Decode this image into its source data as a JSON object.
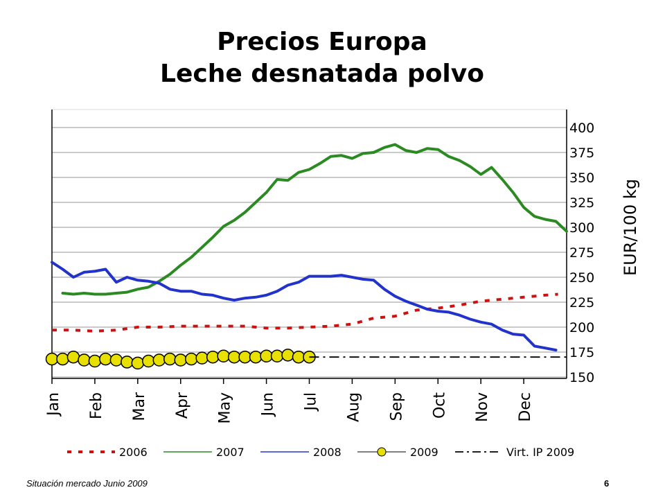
{
  "slide": {
    "title_line1": "Precios Europa",
    "title_line2": "Leche desnatada polvo",
    "footer_left": "Situación mercado Junio 2009",
    "page_number": "6"
  },
  "chart_data": {
    "type": "line",
    "ylabel": "EUR/100 kg",
    "ylim": [
      150,
      400
    ],
    "yticks": [
      150,
      175,
      200,
      225,
      250,
      275,
      300,
      325,
      350,
      375,
      400
    ],
    "xlim": [
      0,
      12
    ],
    "months": [
      "Jan",
      "Feb",
      "Mar",
      "Apr",
      "May",
      "Jun",
      "Jul",
      "Aug",
      "Sep",
      "Oct",
      "Nov",
      "Dec"
    ],
    "grid": true,
    "legend_position": "bottom",
    "series": [
      {
        "name": "2006",
        "color": "#cc1111",
        "style": "dotted",
        "x": [
          0,
          0.5,
          1,
          1.5,
          2,
          2.5,
          3,
          3.5,
          4,
          4.5,
          5,
          5.5,
          6,
          6.5,
          7,
          7.5,
          8,
          8.5,
          9,
          9.5,
          10,
          10.5,
          11,
          11.5,
          11.8
        ],
        "y": [
          197,
          197,
          196,
          197,
          200,
          200,
          201,
          201,
          201,
          201,
          199,
          199,
          200,
          201,
          203,
          209,
          211,
          217,
          219,
          222,
          226,
          228,
          230,
          232,
          233
        ]
      },
      {
        "name": "2007",
        "color": "#2b8a22",
        "style": "solid",
        "x": [
          0.25,
          0.5,
          0.75,
          1,
          1.25,
          1.5,
          1.75,
          2,
          2.25,
          2.5,
          2.75,
          3,
          3.25,
          3.5,
          3.75,
          4,
          4.25,
          4.5,
          4.75,
          5,
          5.25,
          5.5,
          5.75,
          6,
          6.25,
          6.5,
          6.75,
          7,
          7.25,
          7.5,
          7.75,
          8,
          8.25,
          8.5,
          8.75,
          9,
          9.25,
          9.5,
          9.75,
          10,
          10.25,
          10.5,
          10.75,
          11,
          11.25,
          11.5,
          11.75,
          12
        ],
        "y": [
          234,
          233,
          234,
          233,
          233,
          234,
          235,
          238,
          240,
          246,
          253,
          262,
          270,
          280,
          290,
          301,
          307,
          315,
          325,
          335,
          348,
          347,
          355,
          358,
          364,
          371,
          372,
          369,
          374,
          375,
          380,
          383,
          377,
          375,
          379,
          378,
          371,
          367,
          361,
          353,
          360,
          348,
          335,
          320,
          311,
          308,
          306,
          296
        ]
      },
      {
        "name": "2008",
        "color": "#2233cc",
        "style": "solid",
        "x": [
          0,
          0.25,
          0.5,
          0.75,
          1,
          1.25,
          1.5,
          1.75,
          2,
          2.25,
          2.5,
          2.75,
          3,
          3.25,
          3.5,
          3.75,
          4,
          4.25,
          4.5,
          4.75,
          5,
          5.25,
          5.5,
          5.75,
          6,
          6.25,
          6.5,
          6.75,
          7,
          7.25,
          7.5,
          7.75,
          8,
          8.25,
          8.5,
          8.75,
          9,
          9.25,
          9.5,
          9.75,
          10,
          10.25,
          10.5,
          10.75,
          11,
          11.25,
          11.5,
          11.75
        ],
        "y": [
          265,
          258,
          250,
          255,
          256,
          258,
          245,
          250,
          247,
          246,
          244,
          238,
          236,
          236,
          233,
          232,
          229,
          227,
          229,
          230,
          232,
          236,
          242,
          245,
          251,
          251,
          251,
          252,
          250,
          248,
          247,
          238,
          231,
          226,
          222,
          218,
          216,
          215,
          212,
          208,
          205,
          203,
          197,
          193,
          192,
          181,
          179,
          177
        ]
      },
      {
        "name": "2009",
        "color": "#e8e000",
        "style": "markers",
        "x": [
          0,
          0.25,
          0.5,
          0.75,
          1,
          1.25,
          1.5,
          1.75,
          2,
          2.25,
          2.5,
          2.75,
          3,
          3.25,
          3.5,
          3.75,
          4,
          4.25,
          4.5,
          4.75,
          5,
          5.25,
          5.5,
          5.75,
          6
        ],
        "y": [
          168,
          168,
          170,
          167,
          166,
          168,
          167,
          165,
          164,
          166,
          167,
          168,
          167,
          168,
          169,
          170,
          171,
          170,
          170,
          170,
          171,
          171,
          172,
          170,
          170
        ]
      },
      {
        "name": "Virt. IP 2009",
        "color": "#000000",
        "style": "dashdot",
        "x": [
          6,
          12
        ],
        "y": [
          170,
          170
        ]
      }
    ]
  }
}
